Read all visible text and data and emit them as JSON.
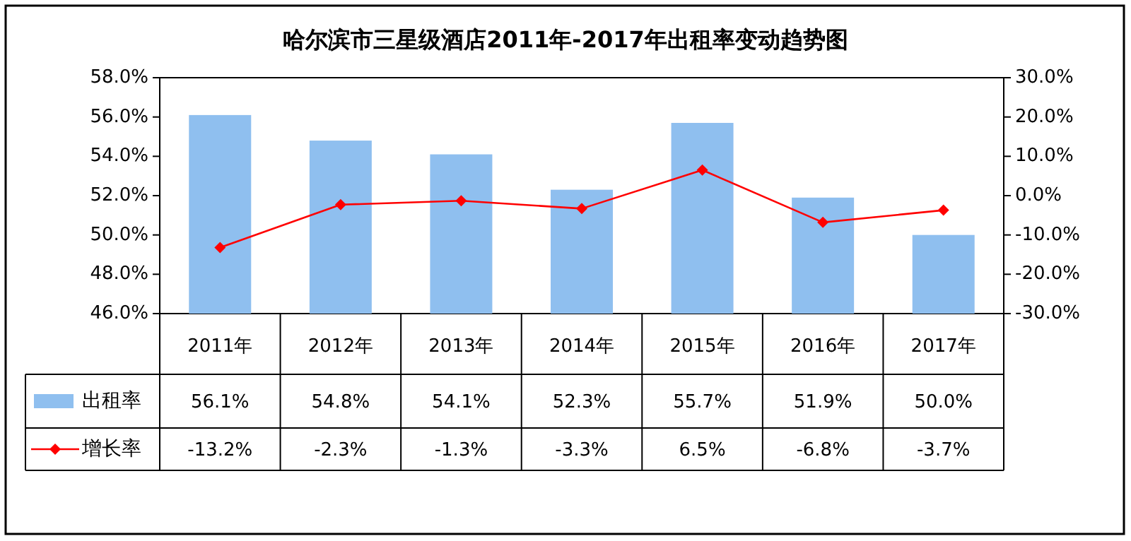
{
  "chart_data": {
    "type": "bar",
    "title": "哈尔滨市三星级酒店2011年-2017年出租率变动趋势图",
    "categories": [
      "2011年",
      "2012年",
      "2013年",
      "2014年",
      "2015年",
      "2016年",
      "2017年"
    ],
    "series": [
      {
        "name": "出租率",
        "color": "#8fbfef",
        "values": [
          56.1,
          54.8,
          54.1,
          52.3,
          55.7,
          51.9,
          50.0
        ],
        "value_labels": [
          "56.1%",
          "54.8%",
          "54.1%",
          "52.3%",
          "55.7%",
          "51.9%",
          "50.0%"
        ]
      },
      {
        "name": "增长率",
        "type": "line",
        "axis": "y2",
        "color": "#ff0000",
        "marker": "diamond",
        "values": [
          -13.2,
          -2.3,
          -1.3,
          -3.3,
          6.5,
          -6.8,
          -3.7
        ],
        "value_labels": [
          "-13.2%",
          "-2.3%",
          "-1.3%",
          "-3.3%",
          "6.5%",
          "-6.8%",
          "-3.7%"
        ]
      }
    ],
    "ylim": [
      46,
      58
    ],
    "yticks": [
      {
        "value": 46,
        "label": "46.0%"
      },
      {
        "value": 48,
        "label": "48.0%"
      },
      {
        "value": 50,
        "label": "50.0%"
      },
      {
        "value": 52,
        "label": "52.0%"
      },
      {
        "value": 54,
        "label": "54.0%"
      },
      {
        "value": 56,
        "label": "56.0%"
      },
      {
        "value": 58,
        "label": "58.0%"
      }
    ],
    "y2lim": [
      -30,
      30
    ],
    "y2ticks": [
      {
        "value": -30,
        "label": "-30.0%"
      },
      {
        "value": -20,
        "label": "-20.0%"
      },
      {
        "value": -10,
        "label": "-10.0%"
      },
      {
        "value": 0,
        "label": "0.0%"
      },
      {
        "value": 10,
        "label": "10.0%"
      },
      {
        "value": 20,
        "label": "20.0%"
      },
      {
        "value": 30,
        "label": "30.0%"
      }
    ],
    "legend": "bottom"
  }
}
